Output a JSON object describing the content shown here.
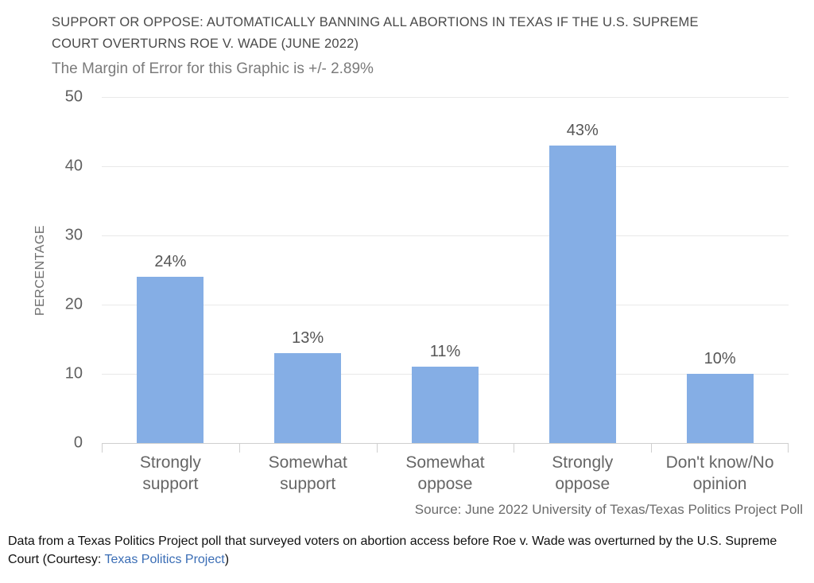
{
  "header": {
    "title": "SUPPORT OR OPPOSE: AUTOMATICALLY BANNING ALL ABORTIONS IN TEXAS IF THE U.S. SUPREME\nCOURT OVERTURNS ROE V. WADE (JUNE 2022)",
    "subtitle": "The Margin of Error for this Graphic is +/- 2.89%"
  },
  "chart_data": {
    "type": "bar",
    "title": "SUPPORT OR OPPOSE: AUTOMATICALLY BANNING ALL ABORTIONS IN TEXAS IF THE U.S. SUPREME COURT OVERTURNS ROE V. WADE (JUNE 2022)",
    "subtitle": "The Margin of Error for this Graphic is +/- 2.89%",
    "categories": [
      "Strongly support",
      "Somewhat support",
      "Somewhat oppose",
      "Strongly oppose",
      "Don't know/No opinion"
    ],
    "category_label_lines": [
      "Strongly\nsupport",
      "Somewhat\nsupport",
      "Somewhat\noppose",
      "Strongly\noppose",
      "Don't know/No\nopinion"
    ],
    "values": [
      24,
      13,
      11,
      43,
      10
    ],
    "bar_value_labels": [
      "24%",
      "13%",
      "11%",
      "43%",
      "10%"
    ],
    "xlabel": "",
    "ylabel": "PERCENTAGE",
    "ylim": [
      0,
      50
    ],
    "yticks": [
      0,
      10,
      20,
      30,
      40,
      50
    ],
    "grid": "horizontal",
    "legend": "none",
    "bar_color": "#85AEE5",
    "gridline_color": "#E9E9E9",
    "axis_line_color": "#CFCFCF",
    "source": "Source: June 2022 University of Texas/Texas Politics Project Poll"
  },
  "caption": {
    "text_before_link": "Data from a Texas Politics Project poll that surveyed voters on abortion access before Roe v. Wade was overturned by the U.S. Supreme\nCourt (Courtesy: ",
    "link_text": "Texas Politics Project",
    "text_after_link": ")",
    "link_color": "#3A6DB5"
  }
}
